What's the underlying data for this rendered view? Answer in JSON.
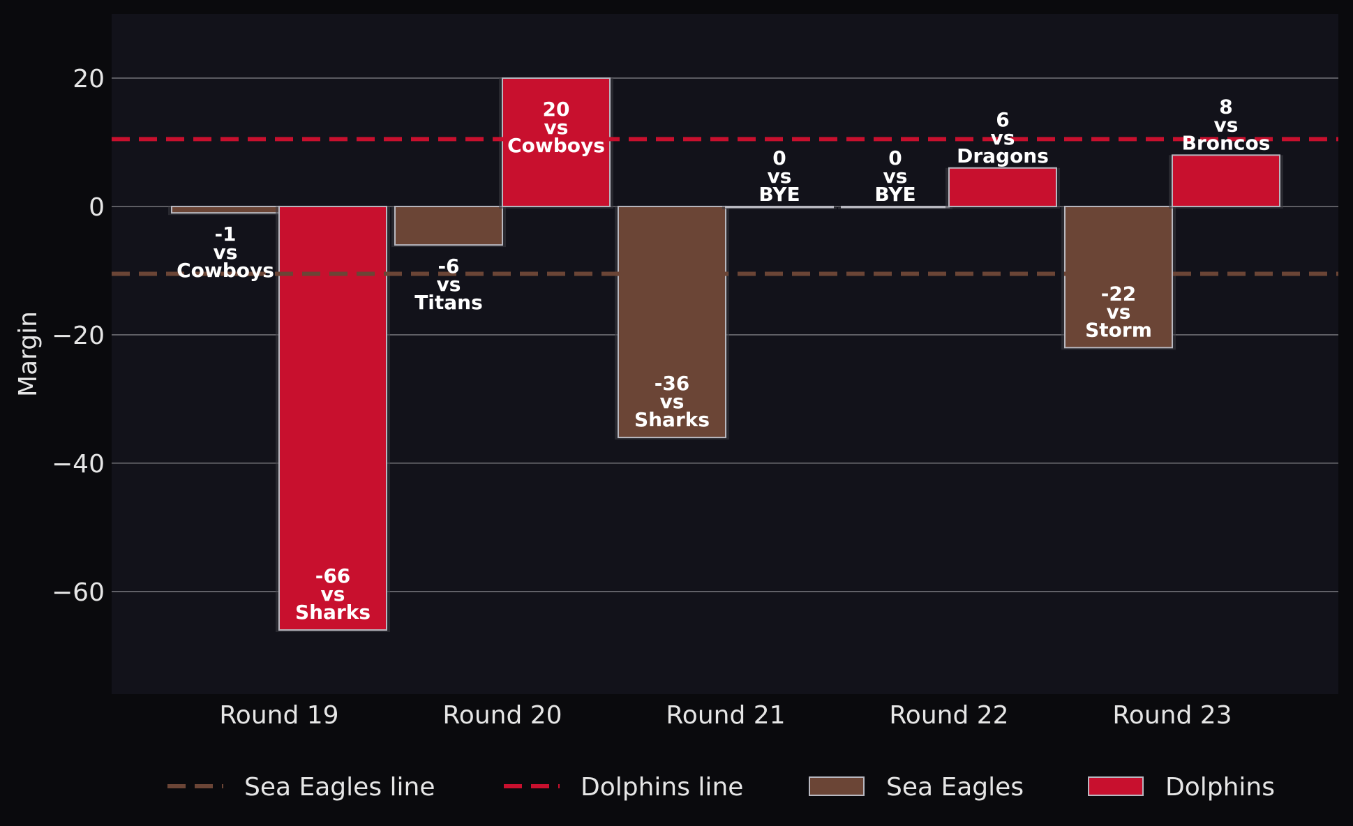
{
  "chart_data": {
    "type": "bar",
    "categories": [
      "Round 19",
      "Round 20",
      "Round 21",
      "Round 22",
      "Round 23"
    ],
    "ylabel": "Margin",
    "xlabel": "",
    "ylim": [
      -76,
      30
    ],
    "yticks": [
      20,
      0,
      -20,
      -40,
      -60
    ],
    "ytick_labels": [
      "20",
      "0",
      "−20",
      "−40",
      "−60"
    ],
    "grid": "horizontal",
    "legend_position": "bottom",
    "series": [
      {
        "name": "Sea Eagles",
        "color": "#6b4536",
        "values": [
          -1,
          -6,
          -36,
          0,
          -22
        ],
        "labels": [
          [
            "-1",
            "vs",
            "Cowboys"
          ],
          [
            "-6",
            "vs",
            "Titans"
          ],
          [
            "-36",
            "vs",
            "Sharks"
          ],
          [
            "0",
            "vs",
            "BYE"
          ],
          [
            "-22",
            "vs",
            "Storm"
          ]
        ]
      },
      {
        "name": "Dolphins",
        "color": "#c8102e",
        "values": [
          -66,
          20,
          0,
          6,
          8
        ],
        "labels": [
          [
            "-66",
            "vs",
            "Sharks"
          ],
          [
            "20",
            "vs",
            "Cowboys"
          ],
          [
            "0",
            "vs",
            "BYE"
          ],
          [
            "6",
            "vs",
            "Dragons"
          ],
          [
            "8",
            "vs",
            "Broncos"
          ]
        ]
      }
    ],
    "reference_lines": [
      {
        "name": "Sea Eagles line",
        "value": -10.5,
        "color": "#6b4536"
      },
      {
        "name": "Dolphins line",
        "value": 10.5,
        "color": "#c8102e"
      }
    ],
    "legend": [
      "Sea Eagles line",
      "Dolphins line",
      "Sea Eagles",
      "Dolphins"
    ]
  },
  "colors": {
    "page_background": "#0a0a0d",
    "plot_background": "#12121a",
    "grid": "#6e6e74",
    "text": "#e6e6e6",
    "bar_edge": "#b8b8c0"
  }
}
